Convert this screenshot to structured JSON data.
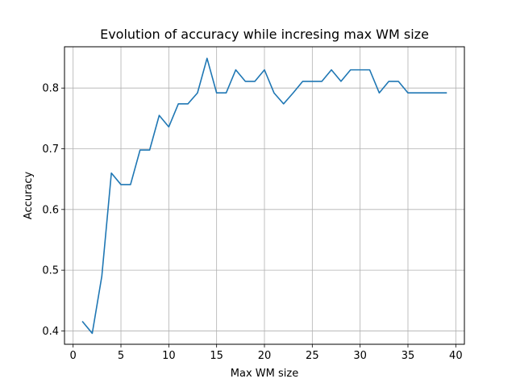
{
  "chart_data": {
    "type": "line",
    "title": "Evolution of accuracy while incresing max WM size",
    "xlabel": "Max WM size",
    "ylabel": "Accuracy",
    "xlim": [
      -0.9,
      40.9
    ],
    "ylim": [
      0.378,
      0.868
    ],
    "xticks": [
      0,
      5,
      10,
      15,
      20,
      25,
      30,
      35,
      40
    ],
    "xtick_labels": [
      "0",
      "5",
      "10",
      "15",
      "20",
      "25",
      "30",
      "35",
      "40"
    ],
    "yticks": [
      0.4,
      0.5,
      0.6,
      0.7,
      0.8
    ],
    "ytick_labels": [
      "0.4",
      "0.5",
      "0.6",
      "0.7",
      "0.8"
    ],
    "grid": true,
    "series": [
      {
        "color": "#1f77b4",
        "x": [
          1,
          2,
          3,
          4,
          5,
          6,
          7,
          8,
          9,
          10,
          11,
          12,
          13,
          14,
          15,
          16,
          17,
          18,
          19,
          20,
          21,
          22,
          23,
          24,
          25,
          26,
          27,
          28,
          29,
          30,
          31,
          32,
          33,
          34,
          35,
          36,
          37,
          38,
          39
        ],
        "y": [
          0.415,
          0.396,
          0.49,
          0.66,
          0.641,
          0.641,
          0.698,
          0.698,
          0.755,
          0.736,
          0.774,
          0.774,
          0.792,
          0.849,
          0.792,
          0.792,
          0.83,
          0.811,
          0.811,
          0.83,
          0.792,
          0.774,
          0.792,
          0.811,
          0.811,
          0.811,
          0.83,
          0.811,
          0.83,
          0.83,
          0.83,
          0.792,
          0.811,
          0.811,
          0.792,
          0.792,
          0.792,
          0.792,
          0.792
        ]
      }
    ]
  }
}
